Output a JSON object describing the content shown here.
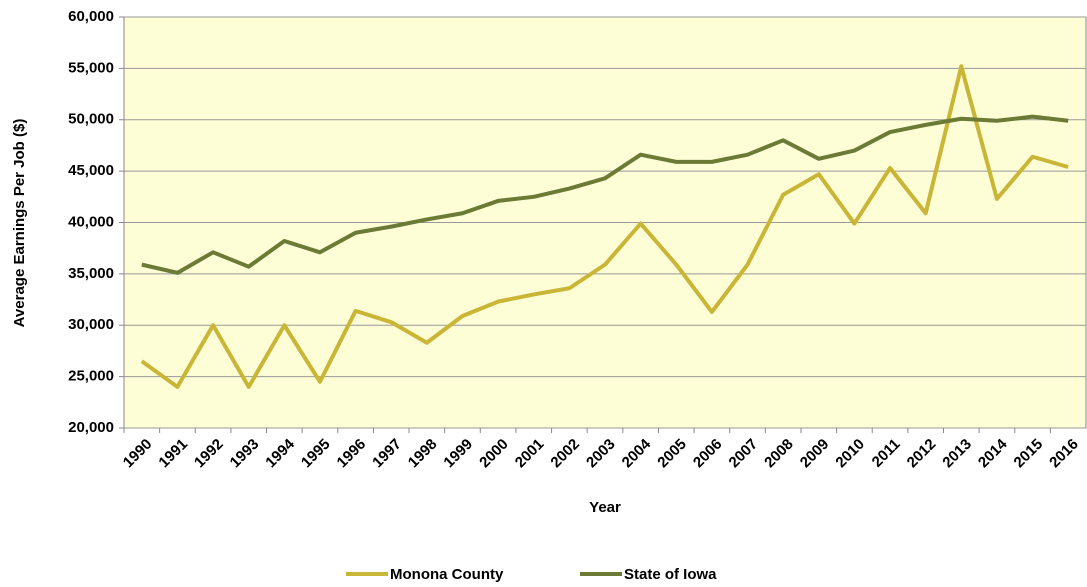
{
  "chart_data": {
    "type": "line",
    "x_label": "Year",
    "y_label": "Average Earnings Per Job ($)",
    "categories": [
      "1990",
      "1991",
      "1992",
      "1993",
      "1994",
      "1995",
      "1996",
      "1997",
      "1998",
      "1999",
      "2000",
      "2001",
      "2002",
      "2003",
      "2004",
      "2005",
      "2006",
      "2007",
      "2008",
      "2009",
      "2010",
      "2011",
      "2012",
      "2013",
      "2014",
      "2015",
      "2016"
    ],
    "series": [
      {
        "name": "Monona County",
        "color": "#c9b536",
        "values": [
          26500,
          24000,
          30000,
          24000,
          30000,
          24500,
          31400,
          30300,
          28300,
          30900,
          32300,
          33000,
          33600,
          35900,
          39900,
          35900,
          31300,
          35900,
          42700,
          44700,
          39900,
          45300,
          40900,
          55200,
          42300,
          46400,
          45400
        ]
      },
      {
        "name": "State of Iowa",
        "color": "#6b7a34",
        "values": [
          35900,
          35100,
          37100,
          35700,
          38200,
          37100,
          39000,
          39600,
          40300,
          40900,
          42100,
          42500,
          43300,
          44300,
          46600,
          45900,
          45900,
          46600,
          48000,
          46200,
          47000,
          48800,
          49500,
          50100,
          49900,
          50300,
          49900
        ]
      }
    ],
    "ylim": [
      20000,
      60000
    ],
    "yticks": [
      {
        "value": 20000,
        "label": "20,000"
      },
      {
        "value": 25000,
        "label": "25,000"
      },
      {
        "value": 30000,
        "label": "30,000"
      },
      {
        "value": 35000,
        "label": "35,000"
      },
      {
        "value": 40000,
        "label": "40,000"
      },
      {
        "value": 45000,
        "label": "45,000"
      },
      {
        "value": 50000,
        "label": "50,000"
      },
      {
        "value": 55000,
        "label": "55,000"
      },
      {
        "value": 60000,
        "label": "60,000"
      }
    ],
    "grid": true,
    "plot_background": "#fdfdd6",
    "legend": "bottom"
  }
}
